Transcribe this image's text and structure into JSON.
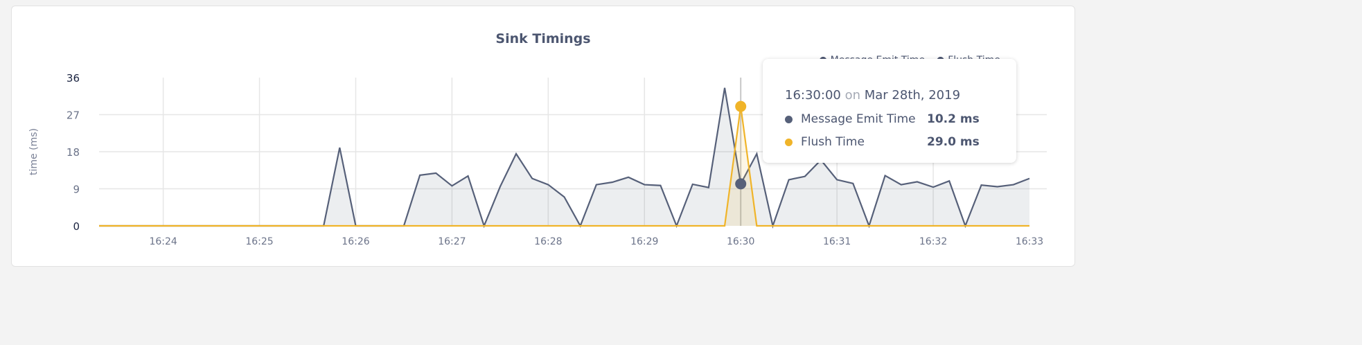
{
  "chart_data": {
    "type": "area",
    "title": "Sink Timings",
    "ylabel": "time (ms)",
    "xlabel": "",
    "ylim": [
      0,
      36
    ],
    "yticks": [
      "0",
      "9",
      "18",
      "27",
      "36"
    ],
    "xticks": [
      "16:24",
      "16:25",
      "16:26",
      "16:27",
      "16:28",
      "16:29",
      "16:30",
      "16:31",
      "16:32",
      "16:33"
    ],
    "x_start": "16:23:20",
    "x_step_seconds": 10,
    "grid": true,
    "legend_position": "top-right",
    "series": [
      {
        "name": "Message Emit Time",
        "color": "#566079",
        "values": [
          0,
          0,
          0,
          0,
          0,
          0,
          0,
          0,
          0,
          0,
          0,
          0,
          0,
          0,
          0,
          19,
          0,
          0,
          0,
          0,
          12.3,
          12.8,
          9.7,
          12.1,
          0,
          9.5,
          17.5,
          11.5,
          10,
          7,
          0,
          10,
          10.6,
          11.8,
          10,
          9.8,
          0,
          10.1,
          9.3,
          33.5,
          10.2,
          17.5,
          0,
          11.2,
          12,
          16,
          11.2,
          10.3,
          0,
          12.2,
          10,
          10.7,
          9.4,
          10.9,
          0,
          9.9,
          9.5,
          10,
          11.5
        ]
      },
      {
        "name": "Flush Time",
        "color": "#f0b429",
        "values": [
          0,
          0,
          0,
          0,
          0,
          0,
          0,
          0,
          0,
          0,
          0,
          0,
          0,
          0,
          0,
          0,
          0,
          0,
          0,
          0,
          0,
          0,
          0,
          0,
          0,
          0,
          0,
          0,
          0,
          0,
          0,
          0,
          0,
          0,
          0,
          0,
          0,
          0,
          0,
          0,
          29.0,
          0,
          0,
          0,
          0,
          0,
          0,
          0,
          0,
          0,
          0,
          0,
          0,
          0,
          0,
          0,
          0,
          0,
          0
        ]
      }
    ]
  },
  "tooltip": {
    "time": "16:30:00",
    "on": "on",
    "date": "Mar 28th, 2019",
    "rows": [
      {
        "label": "Message Emit Time",
        "value": "10.2 ms",
        "color": "#566079"
      },
      {
        "label": "Flush Time",
        "value": "29.0 ms",
        "color": "#f0b429"
      }
    ]
  }
}
